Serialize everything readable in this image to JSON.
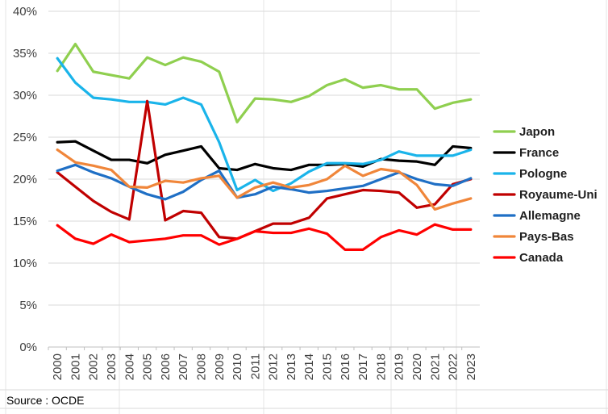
{
  "chart_data": {
    "type": "line",
    "title": "",
    "xlabel": "",
    "ylabel": "",
    "x": [
      "2000",
      "2001",
      "2002",
      "2003",
      "2004",
      "2005",
      "2006",
      "2007",
      "2008",
      "2009",
      "2010",
      "2011",
      "2012",
      "2013",
      "2014",
      "2015",
      "2016",
      "2017",
      "2018",
      "2019",
      "2020",
      "2021",
      "2022",
      "2023"
    ],
    "ylim": [
      0,
      40
    ],
    "yticks": [
      "0%",
      "5%",
      "10%",
      "15%",
      "20%",
      "25%",
      "30%",
      "35%",
      "40%"
    ],
    "grid": "horizontal",
    "legend_position": "right",
    "series": [
      {
        "name": "Japon",
        "color": "#8fcf4f",
        "values": [
          32.9,
          36.1,
          32.8,
          32.4,
          32.0,
          34.5,
          33.6,
          34.5,
          34.0,
          32.8,
          26.8,
          29.6,
          29.5,
          29.2,
          29.9,
          31.2,
          31.9,
          30.9,
          31.2,
          30.7,
          30.7,
          28.4,
          29.1,
          29.5
        ]
      },
      {
        "name": "France",
        "color": "#000000",
        "values": [
          24.4,
          24.5,
          23.4,
          22.3,
          22.3,
          21.9,
          22.9,
          23.4,
          23.9,
          21.3,
          21.1,
          21.8,
          21.3,
          21.1,
          21.7,
          21.7,
          21.8,
          21.5,
          22.4,
          22.2,
          22.1,
          21.7,
          23.9,
          23.7
        ]
      },
      {
        "name": "Pologne",
        "color": "#1ab4ea",
        "values": [
          34.4,
          31.5,
          29.7,
          29.5,
          29.2,
          29.2,
          28.9,
          29.7,
          28.9,
          24.4,
          18.7,
          19.9,
          18.6,
          19.5,
          20.9,
          21.9,
          21.9,
          21.8,
          22.3,
          23.3,
          22.8,
          22.8,
          22.8,
          23.5
        ]
      },
      {
        "name": "Royaume-Uni",
        "color": "#c00000",
        "values": [
          20.8,
          19.1,
          17.4,
          16.1,
          15.2,
          29.3,
          15.1,
          16.2,
          16.0,
          13.1,
          12.9,
          13.8,
          14.7,
          14.7,
          15.4,
          17.7,
          18.2,
          18.7,
          18.6,
          18.4,
          16.6,
          17.0,
          19.4,
          20.0
        ]
      },
      {
        "name": "Allemagne",
        "color": "#1f6fc5",
        "values": [
          21.0,
          21.7,
          20.8,
          20.1,
          19.1,
          18.2,
          17.6,
          18.5,
          19.9,
          21.0,
          17.8,
          18.2,
          19.1,
          18.8,
          18.4,
          18.6,
          18.9,
          19.2,
          20.0,
          20.8,
          20.0,
          19.4,
          19.2,
          20.1
        ]
      },
      {
        "name": "Pays-Bas",
        "color": "#f0863a",
        "values": [
          23.5,
          22.0,
          21.6,
          21.1,
          19.1,
          19.0,
          19.8,
          19.6,
          20.1,
          20.4,
          17.8,
          19.0,
          19.6,
          19.0,
          19.3,
          20.0,
          21.6,
          20.4,
          21.2,
          20.9,
          19.3,
          16.4,
          17.1,
          17.7
        ]
      },
      {
        "name": "Canada",
        "color": "#ff0000",
        "values": [
          14.5,
          12.9,
          12.3,
          13.4,
          12.5,
          12.7,
          12.9,
          13.3,
          13.3,
          12.2,
          12.9,
          13.8,
          13.6,
          13.6,
          14.1,
          13.5,
          11.6,
          11.6,
          13.1,
          13.9,
          13.4,
          14.6,
          14.0,
          14.0
        ]
      }
    ]
  },
  "footer": {
    "source": "Source : OCDE"
  }
}
